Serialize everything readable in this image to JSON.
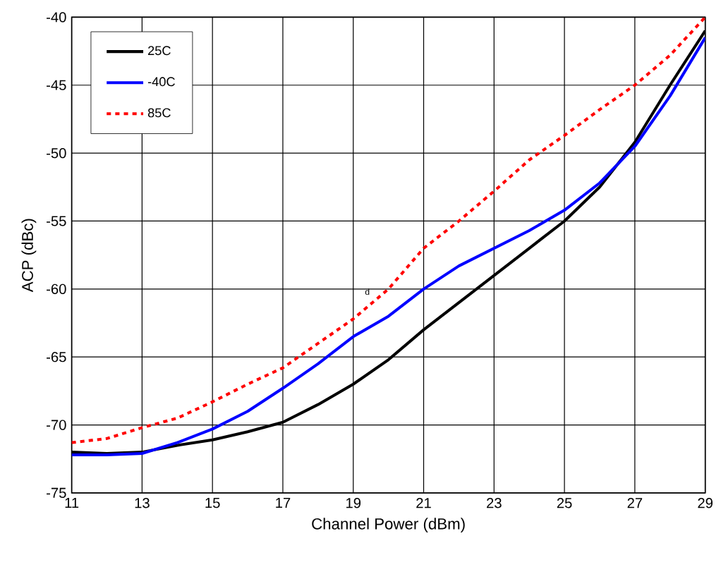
{
  "chart_data": {
    "type": "line",
    "xlabel": "Channel Power (dBm)",
    "ylabel": "ACP (dBc)",
    "x": [
      11,
      12,
      13,
      14,
      15,
      16,
      17,
      18,
      19,
      20,
      21,
      22,
      23,
      24,
      25,
      26,
      27,
      28,
      29
    ],
    "series": [
      {
        "name": "25C",
        "color": "#000000",
        "line_style": "solid",
        "values": [
          -72,
          -72.1,
          -72,
          -71.5,
          -71.1,
          -70.5,
          -69.8,
          -68.5,
          -67,
          -65.2,
          -63,
          -61,
          -59,
          -57,
          -55,
          -52.5,
          -49.2,
          -45,
          -41
        ]
      },
      {
        "name": "-40C",
        "color": "#0000ff",
        "line_style": "solid",
        "values": [
          -72.2,
          -72.2,
          -72.1,
          -71.3,
          -70.3,
          -69,
          -67.3,
          -65.5,
          -63.5,
          -62,
          -60,
          -58.3,
          -57,
          -55.7,
          -54.2,
          -52.2,
          -49.5,
          -45.8,
          -41.5
        ]
      },
      {
        "name": "85C",
        "color": "#ff0000",
        "line_style": "dashed",
        "values": [
          -71.3,
          -71,
          -70.2,
          -69.5,
          -68.3,
          -67,
          -65.8,
          -64,
          -62.2,
          -60,
          -57,
          -55,
          -52.8,
          -50.5,
          -48.7,
          -46.8,
          -45,
          -42.8,
          -40
        ]
      }
    ],
    "annotations": [
      {
        "text": "d",
        "x": 19.4,
        "y": -60.8
      }
    ],
    "xlim": [
      11,
      29
    ],
    "ylim": [
      -75,
      -40
    ],
    "xticks": [
      11,
      13,
      15,
      17,
      19,
      21,
      23,
      25,
      27,
      29
    ],
    "yticks": [
      -75,
      -70,
      -65,
      -60,
      -55,
      -50,
      -45,
      -40
    ],
    "grid": true,
    "legend": "top left",
    "marker": "none"
  }
}
